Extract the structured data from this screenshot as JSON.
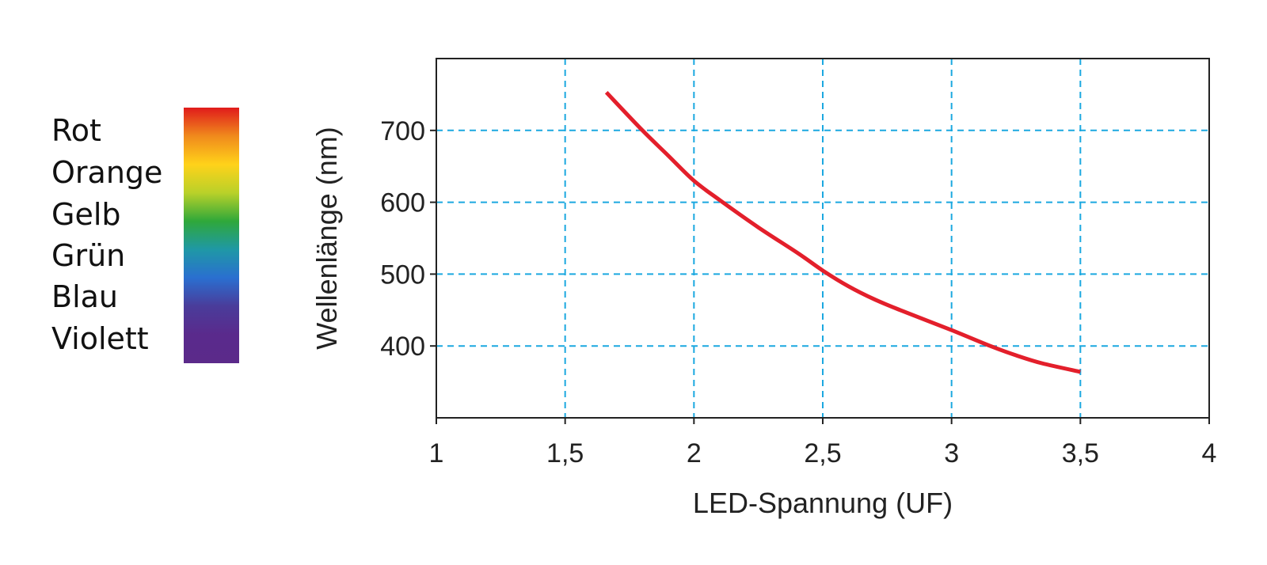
{
  "legend": {
    "items": [
      {
        "label": "Rot",
        "color": "#e31f1f"
      },
      {
        "label": "Orange",
        "color": "#f08a1c"
      },
      {
        "label": "Gelb",
        "color": "#ffd21a"
      },
      {
        "label": "Grün",
        "color": "#2fa83a"
      },
      {
        "label": "Blau",
        "color": "#2a6fd0"
      },
      {
        "label": "Violett",
        "color": "#5b2a8a"
      }
    ],
    "gradient_stops": [
      "#e01b1b",
      "#f08a1c",
      "#ffd21a",
      "#b9d129",
      "#2fa83a",
      "#1f98a6",
      "#2a6fd0",
      "#4a3c9a",
      "#5a2a8c",
      "#5b2a8a"
    ]
  },
  "chart_data": {
    "type": "line",
    "title": "",
    "xlabel": "LED-Spannung (UF)",
    "ylabel": "Wellenlänge (nm)",
    "xlim": [
      1,
      4
    ],
    "ylim": [
      300,
      800
    ],
    "xticks": [
      1,
      1.5,
      2,
      2.5,
      3,
      3.5,
      4
    ],
    "xtick_labels": [
      "1",
      "1,5",
      "2",
      "2,5",
      "3",
      "3,5",
      "4"
    ],
    "yticks": [
      700,
      600,
      500,
      400
    ],
    "ytick_labels": [
      "700",
      "600",
      "500",
      "400"
    ],
    "grid": true,
    "grid_color": "#1ba8e0",
    "series": [
      {
        "color": "#e31f2b",
        "x": [
          1.66,
          1.8,
          1.9,
          2.0,
          2.1,
          2.25,
          2.4,
          2.5,
          2.6,
          2.7,
          2.8,
          3.0,
          3.15,
          3.25,
          3.35,
          3.5
        ],
        "y": [
          753,
          700,
          665,
          630,
          603,
          565,
          530,
          505,
          483,
          465,
          450,
          422,
          400,
          387,
          376,
          364
        ]
      }
    ]
  }
}
